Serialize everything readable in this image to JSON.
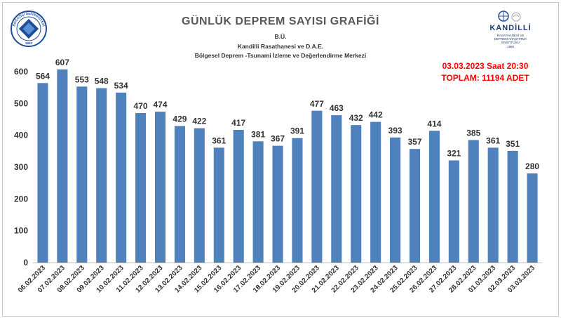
{
  "header": {
    "title": "GÜNLÜK  DEPREM SAYISI GRAFİĞİ",
    "line1": "B.Ü.",
    "line2": "Kandilli Rasathanesi ve D.A.E.",
    "line3": "Bölgesel Deprem -Tsunami İzleme ve Değerlendirme Merkezi"
  },
  "status": {
    "datetime": "03.03.2023 Saat 20:30",
    "total": "TOPLAM:  11194 ADET"
  },
  "logos": {
    "left_icon": "bogazici-university-seal",
    "left_text_top": "BOĞAZİÇİ ÜNİVERSİTESİ",
    "left_year": "1863",
    "right_icon": "kandilli-observatory-logo",
    "right_name": "KANDİLLİ",
    "right_line1": "RASATHANESİ VE",
    "right_line2": "DEPREM ARAŞTIRMA",
    "right_line3": "ENSTİTÜSÜ",
    "right_year": "1868"
  },
  "colors": {
    "bar": "#4f81bd",
    "accent": "#ff0000",
    "title": "#595959"
  },
  "chart_data": {
    "type": "bar",
    "title": "GÜNLÜK  DEPREM SAYISI GRAFİĞİ",
    "xlabel": "",
    "ylabel": "",
    "ylim": [
      0,
      600
    ],
    "yticks": [
      0,
      100,
      200,
      300,
      400,
      500,
      600
    ],
    "grid": false,
    "legend": "none",
    "data_labels": true,
    "categories": [
      "06.02.2023",
      "07.02.2023",
      "08.02.2023",
      "09.02.2023",
      "10.02.2023",
      "11.02.2023",
      "12.02.2023",
      "13.02.2023",
      "14.02.2023",
      "15.02.2023",
      "16.02.2023",
      "17.02.2023",
      "18.02.2023",
      "19.02.2023",
      "20.02.2023",
      "21.02.2023",
      "22.02.2023",
      "23.02.2023",
      "24.02.2023",
      "25.02.2023",
      "26.02.2023",
      "27.02.2023",
      "28.02.2023",
      "01.03.2023",
      "02.03.2023",
      "03.03.2023"
    ],
    "values": [
      564,
      607,
      553,
      548,
      534,
      470,
      474,
      429,
      422,
      361,
      417,
      381,
      367,
      391,
      477,
      463,
      432,
      442,
      393,
      357,
      414,
      321,
      385,
      361,
      351,
      280
    ]
  }
}
